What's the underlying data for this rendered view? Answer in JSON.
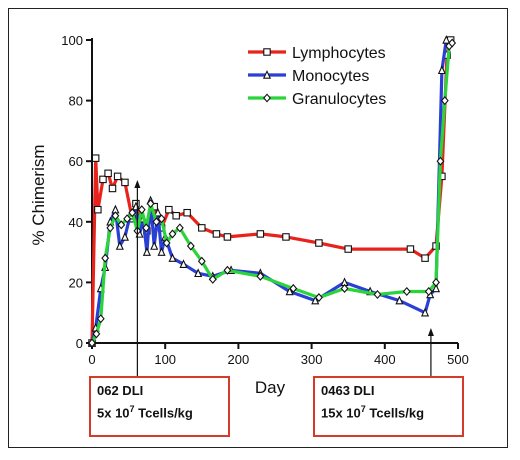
{
  "chart_data": {
    "type": "line",
    "title": "",
    "xlabel": "Day",
    "ylabel": "% Chimerism",
    "xlim": [
      0,
      500
    ],
    "ylim": [
      0,
      100
    ],
    "xticks": [
      "0",
      "100",
      "200",
      "300",
      "400",
      "500"
    ],
    "yticks": [
      "0",
      "20",
      "40",
      "60",
      "80",
      "100"
    ],
    "grid": false,
    "legend_position": "top-right",
    "series": [
      {
        "name": "Lymphocytes",
        "color": "#e8231c",
        "marker": "square",
        "x": [
          0,
          5,
          8,
          15,
          22,
          28,
          35,
          45,
          55,
          60,
          68,
          75,
          85,
          95,
          105,
          115,
          130,
          150,
          170,
          185,
          230,
          265,
          310,
          350,
          435,
          455,
          470,
          478,
          485,
          490
        ],
        "y": [
          0,
          61,
          44,
          54,
          56,
          51,
          55,
          53,
          41,
          46,
          40,
          37,
          45,
          38,
          44,
          42,
          43,
          38,
          36,
          35,
          36,
          35,
          33,
          31,
          31,
          28,
          32,
          55,
          95,
          100
        ]
      },
      {
        "name": "Monocytes",
        "color": "#2a3fd6",
        "marker": "triangle",
        "x": [
          0,
          5,
          12,
          18,
          25,
          32,
          38,
          45,
          52,
          60,
          65,
          70,
          75,
          80,
          85,
          90,
          95,
          100,
          110,
          125,
          145,
          165,
          190,
          230,
          270,
          305,
          345,
          380,
          420,
          455,
          462,
          470,
          478,
          484
        ],
        "y": [
          0,
          5,
          18,
          25,
          40,
          44,
          32,
          35,
          42,
          45,
          36,
          41,
          30,
          47,
          32,
          43,
          30,
          35,
          28,
          26,
          23,
          22,
          24,
          23,
          17,
          14,
          20,
          17,
          14,
          10,
          16,
          18,
          90,
          100
        ]
      },
      {
        "name": "Granulocytes",
        "color": "#2bd43a",
        "marker": "diamond",
        "x": [
          0,
          6,
          12,
          18,
          25,
          32,
          40,
          48,
          55,
          62,
          68,
          74,
          80,
          88,
          95,
          102,
          110,
          120,
          135,
          150,
          165,
          185,
          230,
          275,
          310,
          345,
          390,
          430,
          460,
          470,
          476,
          482,
          488,
          492
        ],
        "y": [
          0,
          3,
          8,
          28,
          38,
          42,
          39,
          41,
          43,
          37,
          44,
          38,
          46,
          40,
          41,
          33,
          36,
          38,
          32,
          27,
          21,
          24,
          22,
          18,
          15,
          18,
          16,
          17,
          17,
          20,
          60,
          80,
          98,
          99
        ]
      }
    ],
    "annotations": [
      {
        "x": 62,
        "line1": "062 DLI",
        "line2_prefix": "5x 10",
        "line2_sup": "7",
        "line2_suffix": " Tcells/kg"
      },
      {
        "x": 463,
        "line1": "0463 DLI",
        "line2_prefix": "15x 10",
        "line2_sup": "7",
        "line2_suffix": " Tcells/kg"
      }
    ]
  }
}
